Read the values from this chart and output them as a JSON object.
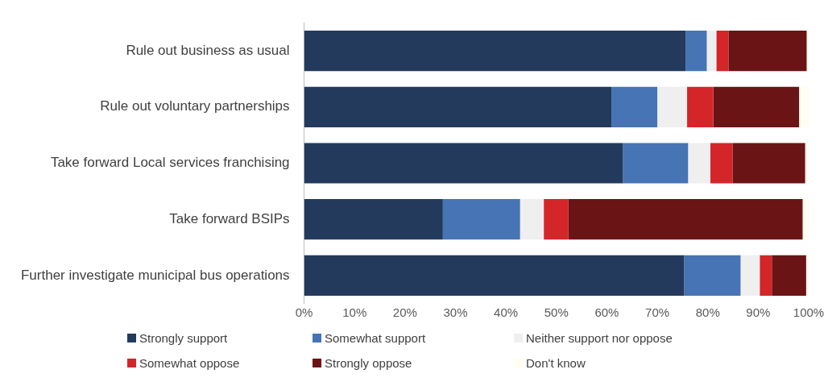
{
  "chart_data": {
    "type": "bar",
    "orientation": "horizontal",
    "stacked": true,
    "legend": "bottom",
    "grid": false,
    "categories": [
      "Rule out business as usual",
      "Rule out voluntary partnerships",
      "Take forward Local services franchising",
      "Take forward BSIPs",
      "Further investigate municipal bus operations"
    ],
    "xlim": [
      0,
      100
    ],
    "xticks": [
      {
        "value": 0,
        "label": "0%"
      },
      {
        "value": 10,
        "label": "10%"
      },
      {
        "value": 20,
        "label": "20%"
      },
      {
        "value": 30,
        "label": "30%"
      },
      {
        "value": 40,
        "label": "40%"
      },
      {
        "value": 50,
        "label": "50%"
      },
      {
        "value": 60,
        "label": "60%"
      },
      {
        "value": 70,
        "label": "70%"
      },
      {
        "value": 80,
        "label": "80%"
      },
      {
        "value": 90,
        "label": "90%"
      },
      {
        "value": 100,
        "label": "100%"
      }
    ],
    "series": [
      {
        "name": "Strongly support",
        "color": "#233a5c",
        "values": [
          75.6,
          60.9,
          63.2,
          27.5,
          75.3
        ]
      },
      {
        "name": "Somewhat support",
        "color": "#4674b4",
        "values": [
          4.2,
          9.1,
          12.9,
          15.3,
          11.2
        ]
      },
      {
        "name": "Neither support nor oppose",
        "color": "#efefef",
        "values": [
          1.9,
          5.9,
          4.4,
          4.7,
          3.8
        ]
      },
      {
        "name": "Somewhat oppose",
        "color": "#d42529",
        "values": [
          2.4,
          5.2,
          4.4,
          4.9,
          2.4
        ]
      },
      {
        "name": "Strongly oppose",
        "color": "#6a1416",
        "values": [
          15.5,
          17.0,
          14.4,
          46.4,
          6.8
        ]
      },
      {
        "name": "Don't know",
        "color": "#fffdf0",
        "values": [
          0.4,
          1.9,
          0.7,
          1.2,
          0.5
        ]
      }
    ]
  }
}
